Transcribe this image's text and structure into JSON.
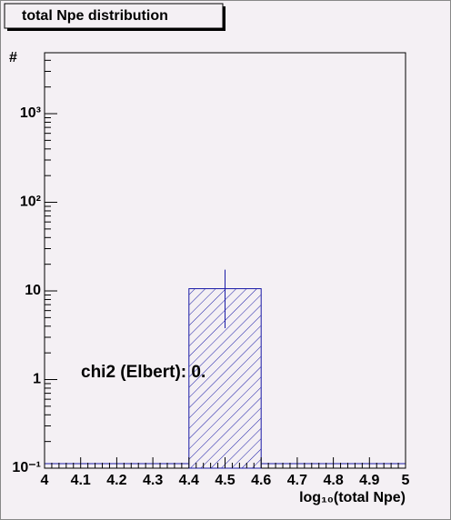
{
  "chart_data": {
    "type": "histogram",
    "title": "total Npe distribution",
    "x_label": "log₁₀(total Npe)",
    "y_label": "#",
    "bins": [
      4.0,
      4.2,
      4.4,
      4.6,
      4.8,
      5.0
    ],
    "values": [
      0,
      0,
      10.6,
      0,
      0
    ],
    "errors": [
      0,
      0,
      6.8,
      0,
      0
    ],
    "color": "#1a1aa6",
    "log_y": true,
    "xlim": [
      4,
      5
    ],
    "xticks": [
      4,
      4.1,
      4.2,
      4.3,
      4.4,
      4.5,
      4.6,
      4.7,
      4.8,
      4.9,
      5
    ],
    "ylim": [
      0.1,
      4870
    ],
    "yticks": [
      {
        "value": 0.1,
        "label": "10⁻¹"
      },
      1,
      10,
      {
        "value": 100,
        "label": "10²"
      },
      {
        "value": 1000,
        "label": "10³"
      }
    ],
    "annotation": "chi2 (Elbert): 0."
  }
}
